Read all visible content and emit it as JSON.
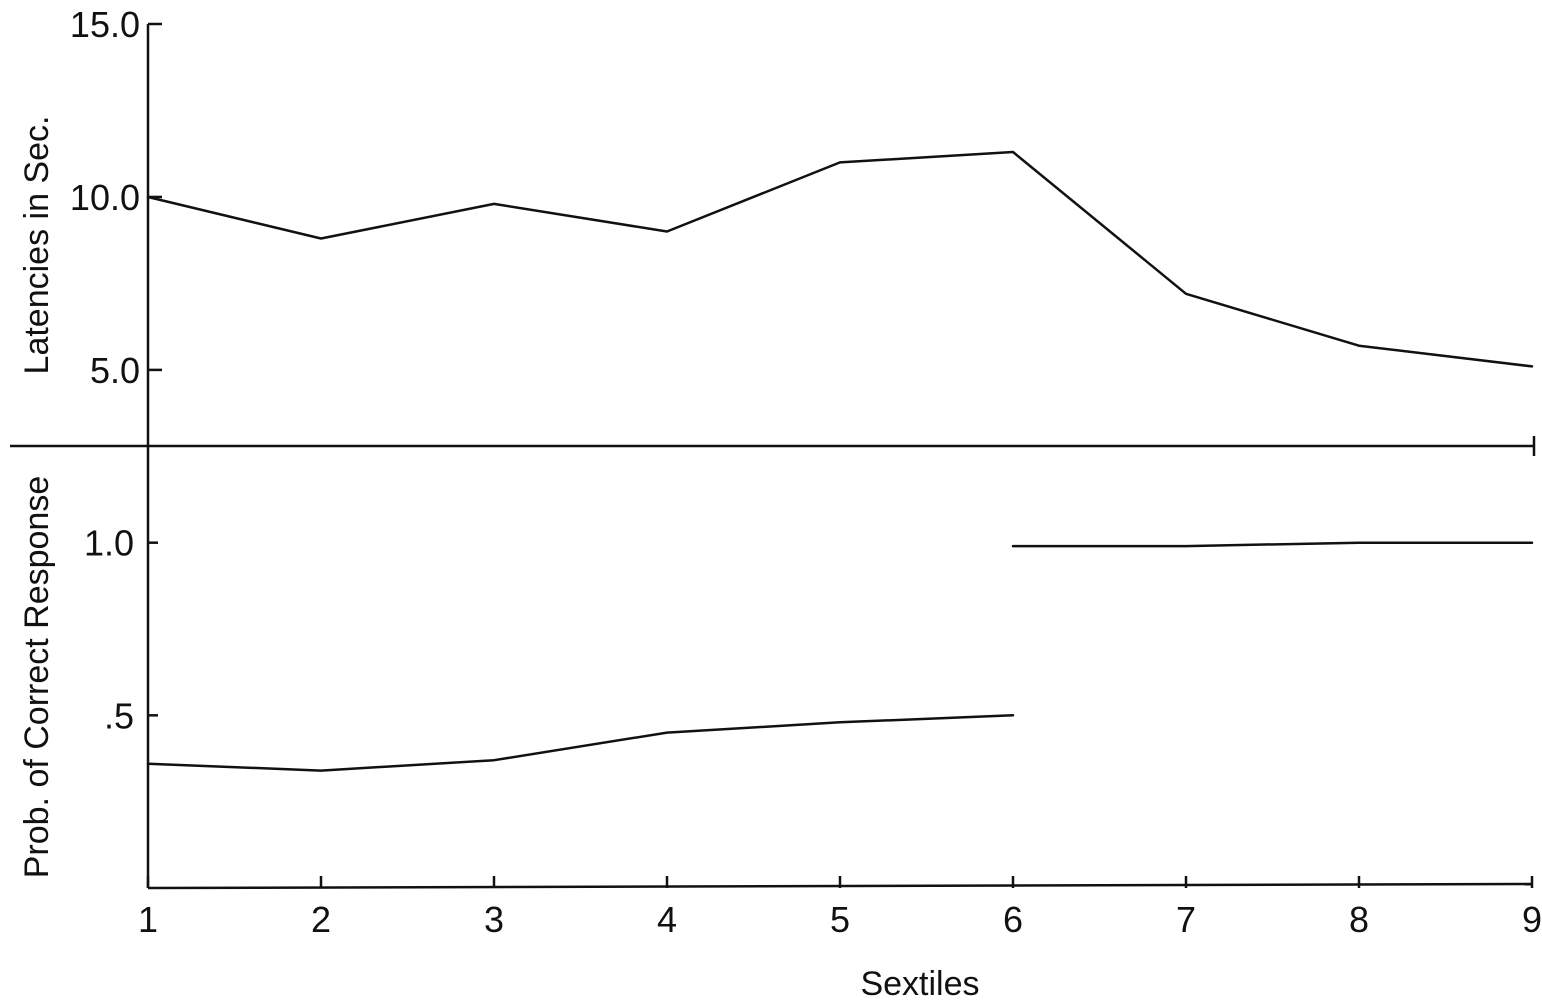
{
  "chart_data": [
    {
      "type": "line",
      "panel": "top",
      "ylabel": "Latencies in Sec.",
      "xlabel": "",
      "x": [
        1,
        2,
        3,
        4,
        5,
        6,
        7,
        8,
        9
      ],
      "ylim": [
        2.8,
        15.0
      ],
      "y_ticks": [
        5.0,
        10.0,
        15.0
      ],
      "y_tick_labels": [
        "5.0",
        "10.0",
        "15.0"
      ],
      "grid": false,
      "series": [
        {
          "values": [
            10.0,
            8.8,
            9.8,
            9.0,
            11.0,
            11.3,
            7.2,
            5.7,
            5.1
          ]
        }
      ]
    },
    {
      "type": "line",
      "panel": "bottom",
      "ylabel": "Prob. of Correct Response",
      "xlabel": "Sextiles",
      "x": [
        1,
        2,
        3,
        4,
        5,
        6,
        7,
        8,
        9
      ],
      "x_tick_labels": [
        "1",
        "2",
        "3",
        "4",
        "5",
        "6",
        "7",
        "8",
        "9"
      ],
      "ylim": [
        0,
        1.28
      ],
      "y_ticks": [
        0.5,
        1.0
      ],
      "y_tick_labels": [
        ".5",
        "1.0"
      ],
      "grid": false,
      "series": [
        {
          "segments": [
            {
              "x": [
                1,
                2,
                3,
                4,
                5,
                6
              ],
              "values": [
                0.36,
                0.34,
                0.37,
                0.45,
                0.48,
                0.5
              ]
            },
            {
              "x": [
                6,
                7,
                8,
                9
              ],
              "values": [
                0.99,
                0.99,
                1.0,
                1.0
              ]
            }
          ]
        }
      ]
    }
  ]
}
